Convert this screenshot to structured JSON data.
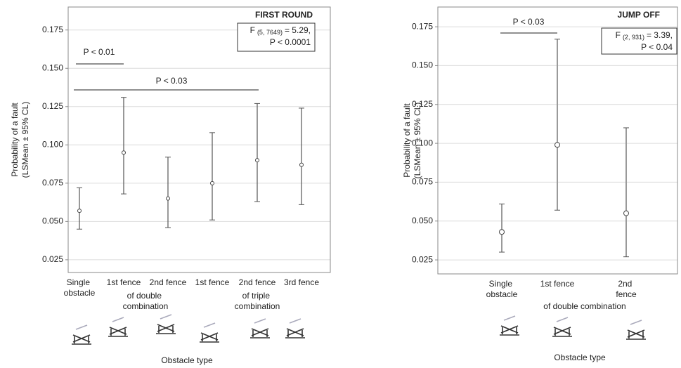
{
  "chart_data": [
    {
      "type": "errorbar",
      "title": "FIRST ROUND",
      "stat": {
        "f": "F",
        "df": "(5, 7649)",
        "value": "= 5.29,",
        "p": "P < 0.0001"
      },
      "y_label": [
        "Probability of a fault",
        "(LSMean ± 95% CL)"
      ],
      "x_label": "Obstacle type",
      "categories": [
        "Single obstacle",
        "1st fence",
        "2nd fence",
        "1st fence",
        "2nd fence",
        "3rd fence"
      ],
      "groups": [
        "of double combination",
        "of triple combination"
      ],
      "comparisons": [
        "P < 0.01",
        "P < 0.03"
      ],
      "values": [
        0.057,
        0.095,
        0.065,
        0.075,
        0.09,
        0.087
      ],
      "lower": [
        0.045,
        0.068,
        0.046,
        0.051,
        0.063,
        0.061
      ],
      "upper": [
        0.072,
        0.131,
        0.092,
        0.108,
        0.127,
        0.124
      ],
      "ylim": [
        0.0167,
        0.19
      ],
      "yticks": [
        0.025,
        {
          "value": 0.05,
          "label": "0.050"
        },
        0.075,
        {
          "value": 0.1,
          "label": "0.100"
        },
        0.125,
        {
          "value": 0.15,
          "label": "0.150"
        },
        0.175
      ],
      "grid": true,
      "color": "#555555"
    },
    {
      "type": "errorbar",
      "title": "JUMP OFF",
      "stat": {
        "f": "F",
        "df": "(2, 931)",
        "value": "= 3.39,",
        "p": "P < 0.04"
      },
      "y_label": [
        "Probability of a fault",
        "(LSMean ± 95% CL)"
      ],
      "x_label": "Obstacle type",
      "categories": [
        "Single obstacle",
        "1st fence",
        "2nd fence"
      ],
      "groups": [
        "of double combination"
      ],
      "comparisons": [
        "P < 0.03"
      ],
      "values": [
        0.043,
        0.099,
        0.055
      ],
      "lower": [
        0.03,
        0.057,
        0.027
      ],
      "upper": [
        0.061,
        0.167,
        0.11
      ],
      "ylim": [
        0.016,
        0.1877
      ],
      "yticks": [
        0.025,
        {
          "value": 0.05,
          "label": "0.050"
        },
        0.075,
        {
          "value": 0.1,
          "label": "0.100"
        },
        0.125,
        {
          "value": 0.15,
          "label": "0.150"
        },
        0.175
      ],
      "grid": true,
      "color": "#9a9a9a"
    }
  ]
}
